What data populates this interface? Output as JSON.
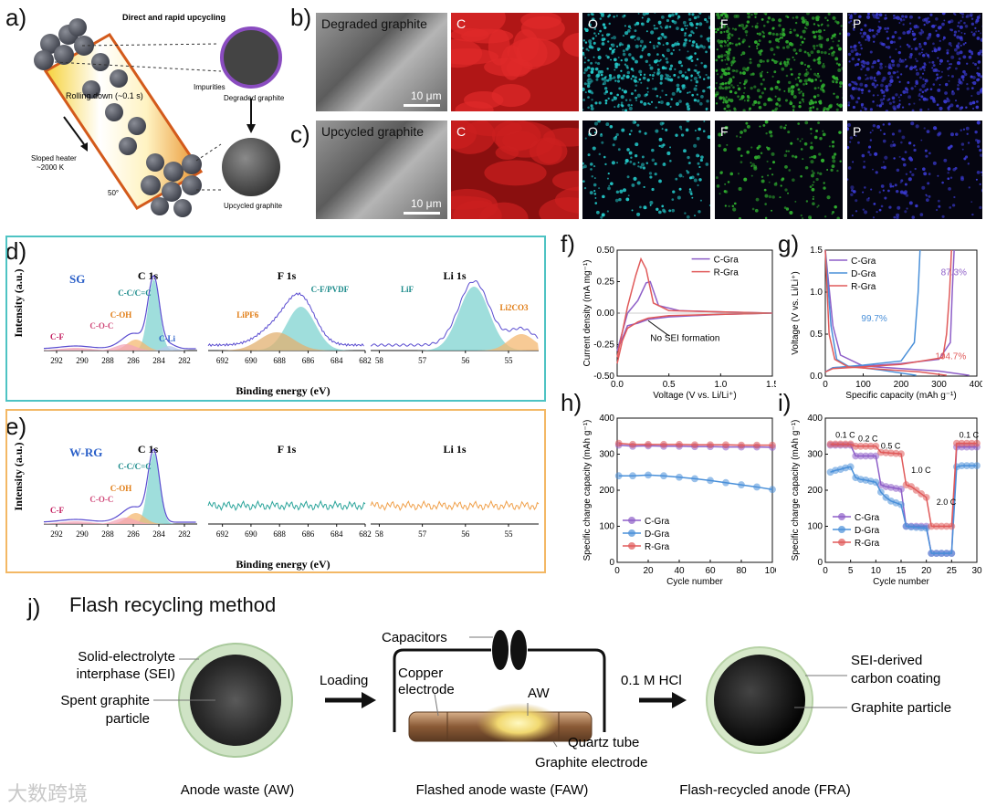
{
  "panel_labels": {
    "a": "a)",
    "b": "b)",
    "c": "c)",
    "d": "d)",
    "e": "e)",
    "f": "f)",
    "g": "g)",
    "h": "h)",
    "i": "i)",
    "j": "j)"
  },
  "panel_a": {
    "title": "Direct and rapid upcycling",
    "rolling": "Rolling down (~0.1 s)",
    "heater": "Sloped heater",
    "heater_temp": "~2000 K",
    "angle": "50°",
    "impurities": "Impurities",
    "degraded": "Degraded graphite",
    "upcycled": "Upcycled graphite"
  },
  "panel_b": {
    "title": "Degraded graphite",
    "scale": "10 μm",
    "maps": [
      "C",
      "O",
      "F",
      "P"
    ]
  },
  "panel_c": {
    "title": "Upcycled graphite",
    "scale": "10 μm",
    "maps": [
      "C",
      "O",
      "F",
      "P"
    ]
  },
  "panel_d": {
    "sample": "SG",
    "titles": [
      "C 1s",
      "F 1s",
      "Li 1s"
    ],
    "ylabel": "Intensity (a.u.)",
    "xlabel": "Binding energy (eV)",
    "c1s_ticks": [
      "292",
      "290",
      "288",
      "286",
      "284",
      "282"
    ],
    "f1s_ticks": [
      "692",
      "690",
      "688",
      "686",
      "684",
      "682"
    ],
    "li1s_ticks": [
      "58",
      "57",
      "56",
      "55"
    ],
    "c1s_peaks": [
      "C-C/C=C",
      "C-OH",
      "C-O-C",
      "C-F",
      "C-Li"
    ],
    "f1s_peaks": [
      "C-F/PVDF",
      "LiPF6"
    ],
    "li1s_peaks": [
      "LiF",
      "Li2CO3"
    ]
  },
  "panel_e": {
    "sample": "W-RG",
    "titles": [
      "C 1s",
      "F 1s",
      "Li 1s"
    ],
    "ylabel": "Intensity (a.u.)",
    "xlabel": "Binding energy (eV)",
    "c1s_ticks": [
      "292",
      "290",
      "288",
      "286",
      "284",
      "282"
    ],
    "f1s_ticks": [
      "692",
      "690",
      "688",
      "686",
      "684",
      "682"
    ],
    "li1s_ticks": [
      "58",
      "57",
      "56",
      "55"
    ],
    "c1s_peaks": [
      "C-C/C=C",
      "C-OH",
      "C-O-C",
      "C-F"
    ]
  },
  "chart_data": [
    {
      "type": "line",
      "panel": "f",
      "xlabel": "Voltage (V vs. Li/Li⁺)",
      "ylabel": "Current density (mA mg⁻¹)",
      "xlim": [
        0,
        1.5
      ],
      "ylim": [
        -0.5,
        0.5
      ],
      "xticks": [
        "0.0",
        "0.5",
        "1.0",
        "1.5"
      ],
      "yticks": [
        "0.50",
        "0.25",
        "0.00",
        "-0.25",
        "-0.50"
      ],
      "annotation": "No SEI formation",
      "series": [
        {
          "name": "C-Gra",
          "color": "#8e5fc8",
          "x": [
            0.0,
            0.1,
            0.2,
            0.28,
            0.32,
            0.4,
            0.6,
            1.0,
            1.5,
            1.0,
            0.5,
            0.3,
            0.2,
            0.1,
            0.05,
            0.0
          ],
          "y": [
            -0.3,
            0.0,
            0.1,
            0.24,
            0.25,
            0.06,
            0.02,
            0.01,
            0.0,
            -0.01,
            -0.03,
            -0.05,
            -0.08,
            -0.1,
            -0.2,
            -0.3
          ]
        },
        {
          "name": "R-Gra",
          "color": "#e05a5a",
          "x": [
            0.0,
            0.1,
            0.18,
            0.23,
            0.28,
            0.35,
            0.5,
            1.0,
            1.5,
            1.0,
            0.5,
            0.3,
            0.2,
            0.1,
            0.05,
            0.0
          ],
          "y": [
            -0.35,
            0.05,
            0.3,
            0.43,
            0.35,
            0.08,
            0.02,
            0.01,
            0.0,
            -0.01,
            -0.02,
            -0.04,
            -0.07,
            -0.12,
            -0.22,
            -0.4
          ]
        }
      ]
    },
    {
      "type": "line",
      "panel": "g",
      "xlabel": "Specific capacity (mAh g⁻¹)",
      "ylabel": "Voltage (V vs. Li/Li⁺)",
      "xlim": [
        0,
        400
      ],
      "ylim": [
        0,
        1.5
      ],
      "xticks": [
        "0",
        "100",
        "200",
        "300",
        "400"
      ],
      "yticks": [
        "0.0",
        "0.5",
        "1.0",
        "1.5"
      ],
      "annotations": [
        {
          "text": "87.3%",
          "color": "#8e5fc8"
        },
        {
          "text": "99.7%",
          "color": "#4a90d9"
        },
        {
          "text": "104.7%",
          "color": "#e05a5a"
        }
      ],
      "series": [
        {
          "name": "C-Gra",
          "color": "#8e5fc8",
          "charge": {
            "x": [
              0,
              20,
              100,
              200,
              300,
              330,
              335,
              340
            ],
            "y": [
              0.05,
              0.1,
              0.12,
              0.15,
              0.2,
              0.4,
              1.0,
              1.5
            ]
          },
          "discharge": {
            "x": [
              0,
              20,
              40,
              100,
              200,
              300,
              380
            ],
            "y": [
              1.5,
              0.6,
              0.25,
              0.12,
              0.09,
              0.06,
              0.01
            ]
          }
        },
        {
          "name": "D-Gra",
          "color": "#4a90d9",
          "charge": {
            "x": [
              0,
              20,
              100,
              200,
              235,
              245,
              250
            ],
            "y": [
              0.05,
              0.1,
              0.13,
              0.18,
              0.4,
              1.0,
              1.5
            ]
          },
          "discharge": {
            "x": [
              0,
              15,
              30,
              60,
              150,
              240
            ],
            "y": [
              1.5,
              0.6,
              0.2,
              0.12,
              0.07,
              0.01
            ]
          }
        },
        {
          "name": "R-Gra",
          "color": "#e05a5a",
          "charge": {
            "x": [
              0,
              20,
              100,
              200,
              310,
              320,
              328,
              333
            ],
            "y": [
              0.05,
              0.09,
              0.11,
              0.14,
              0.22,
              0.5,
              1.0,
              1.5
            ]
          },
          "discharge": {
            "x": [
              0,
              10,
              25,
              60,
              150,
              250,
              320
            ],
            "y": [
              1.5,
              0.5,
              0.2,
              0.11,
              0.08,
              0.05,
              0.01
            ]
          }
        }
      ]
    },
    {
      "type": "scatter",
      "panel": "h",
      "xlabel": "Cycle number",
      "ylabel": "Specific charge capacity (mAh g⁻¹)",
      "xlim": [
        0,
        100
      ],
      "ylim": [
        0,
        400
      ],
      "xticks": [
        "0",
        "20",
        "40",
        "60",
        "80",
        "100"
      ],
      "yticks": [
        "0",
        "100",
        "200",
        "300",
        "400"
      ],
      "series": [
        {
          "name": "C-Gra",
          "color": "#8e5fc8",
          "x": [
            1,
            10,
            20,
            30,
            40,
            50,
            60,
            70,
            80,
            90,
            100
          ],
          "y": [
            325,
            322,
            323,
            322,
            322,
            321,
            321,
            320,
            320,
            320,
            319
          ]
        },
        {
          "name": "D-Gra",
          "color": "#4a90d9",
          "x": [
            1,
            10,
            20,
            30,
            40,
            50,
            60,
            70,
            80,
            90,
            100
          ],
          "y": [
            240,
            240,
            242,
            240,
            236,
            232,
            227,
            221,
            215,
            209,
            202
          ]
        },
        {
          "name": "R-Gra",
          "color": "#e05a5a",
          "x": [
            1,
            10,
            20,
            30,
            40,
            50,
            60,
            70,
            80,
            90,
            100
          ],
          "y": [
            330,
            327,
            327,
            327,
            327,
            326,
            326,
            326,
            325,
            325,
            325
          ]
        }
      ]
    },
    {
      "type": "scatter",
      "panel": "i",
      "xlabel": "Cycle number",
      "ylabel": "Specific charge capacity (mAh g⁻¹)",
      "xlim": [
        0,
        30
      ],
      "ylim": [
        0,
        400
      ],
      "xticks": [
        "0",
        "5",
        "10",
        "15",
        "20",
        "25",
        "30"
      ],
      "yticks": [
        "0",
        "100",
        "200",
        "300",
        "400"
      ],
      "rate_labels": [
        "0.1 C",
        "0.2 C",
        "0.5 C",
        "1.0 C",
        "2.0 C",
        "0.1 C"
      ],
      "series": [
        {
          "name": "C-Gra",
          "color": "#8e5fc8",
          "x": [
            1,
            2,
            3,
            4,
            5,
            6,
            7,
            8,
            9,
            10,
            11,
            12,
            13,
            14,
            15,
            16,
            17,
            18,
            19,
            20,
            21,
            22,
            23,
            24,
            25,
            26,
            27,
            28,
            29,
            30
          ],
          "y": [
            325,
            325,
            325,
            325,
            325,
            295,
            295,
            295,
            295,
            295,
            215,
            210,
            208,
            205,
            203,
            100,
            100,
            100,
            100,
            100,
            25,
            25,
            25,
            25,
            25,
            320,
            320,
            320,
            320,
            320
          ]
        },
        {
          "name": "D-Gra",
          "color": "#4a90d9",
          "x": [
            1,
            2,
            3,
            4,
            5,
            6,
            7,
            8,
            9,
            10,
            11,
            12,
            13,
            14,
            15,
            16,
            17,
            18,
            19,
            20,
            21,
            22,
            23,
            24,
            25,
            26,
            27,
            28,
            29,
            30
          ],
          "y": [
            250,
            255,
            258,
            262,
            265,
            235,
            230,
            228,
            225,
            222,
            195,
            180,
            170,
            165,
            160,
            100,
            98,
            97,
            96,
            95,
            25,
            25,
            25,
            25,
            25,
            265,
            268,
            268,
            268,
            268
          ]
        },
        {
          "name": "R-Gra",
          "color": "#e05a5a",
          "x": [
            1,
            2,
            3,
            4,
            5,
            6,
            7,
            8,
            9,
            10,
            11,
            12,
            13,
            14,
            15,
            16,
            17,
            18,
            19,
            20,
            21,
            22,
            23,
            24,
            25,
            26,
            27,
            28,
            29,
            30
          ],
          "y": [
            328,
            328,
            328,
            328,
            328,
            322,
            322,
            322,
            322,
            322,
            305,
            304,
            303,
            302,
            301,
            215,
            210,
            200,
            190,
            180,
            100,
            100,
            100,
            100,
            100,
            330,
            330,
            330,
            330,
            330
          ]
        }
      ]
    }
  ],
  "panel_j": {
    "title": "Flash recycling method",
    "sei": "Solid-electrolyte\ninterphase (SEI)",
    "spent": "Spent graphite\nparticle",
    "loading": "Loading",
    "capacitors": "Capacitors",
    "copper": "Copper\nelectrode",
    "aw": "AW",
    "quartz": "Quartz tube",
    "graphite_electrode": "Graphite electrode",
    "hcl": "0.1 M HCl",
    "sei_coating": "SEI-derived\ncarbon coating",
    "graphite_particle": "Graphite particle",
    "cap_aw": "Anode waste (AW)",
    "cap_faw": "Flashed anode waste (FAW)",
    "cap_fra": "Flash-recycled anode (FRA)"
  },
  "watermark": "大数跨境"
}
